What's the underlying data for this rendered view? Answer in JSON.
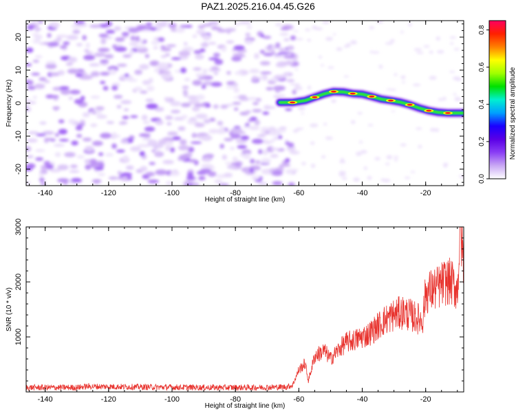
{
  "figure": {
    "title": "PAZ1.2025.216.04.45.G26"
  },
  "colors": {
    "snr_line": "#e8332e",
    "colormap": [
      "#ffffff",
      "#c9a8f4",
      "#8a3ef5",
      "#5a00e6",
      "#1a00ff",
      "#00a0ff",
      "#00f0d0",
      "#00e000",
      "#a0ff00",
      "#ffff00",
      "#ff8000",
      "#ff2000",
      "#ff0060"
    ]
  },
  "chart_data": [
    {
      "type": "heatmap",
      "title": "",
      "xlabel": "Height of straight line (km)",
      "ylabel": "Frequency (Hz)",
      "xlim": [
        -146,
        -8
      ],
      "ylim": [
        -25,
        25
      ],
      "x_ticks": [
        -140,
        -120,
        -100,
        -80,
        -60,
        -40,
        -20
      ],
      "y_ticks": [
        -20,
        -10,
        0,
        10,
        20
      ],
      "noise_region": {
        "x_range": [
          -146,
          -65
        ],
        "amplitude_range": [
          0.02,
          0.12
        ]
      },
      "ridge": {
        "x": [
          -66,
          -62,
          -58,
          -55,
          -52,
          -49,
          -46,
          -43,
          -40,
          -37,
          -34,
          -31,
          -28,
          -25,
          -22,
          -19,
          -16,
          -13,
          -10,
          -8
        ],
        "y": [
          0.2,
          0.2,
          0.8,
          1.8,
          2.8,
          3.5,
          3.4,
          2.9,
          2.7,
          2.0,
          1.2,
          0.8,
          0.3,
          -0.5,
          -1.5,
          -2.3,
          -2.8,
          -3.0,
          -3.0,
          -3.0
        ],
        "peak_amplitude": 0.8
      },
      "colorbar": {
        "label": "Normalized spectral amplitude",
        "range": [
          0.0,
          0.85
        ],
        "ticks": [
          "0.0",
          "0.2",
          "0.4",
          "0.6",
          "0.8"
        ]
      }
    },
    {
      "type": "line",
      "title": "",
      "xlabel": "Height of straight line (km)",
      "ylabel": "SNR (10 * v/v)",
      "xlim": [
        -146,
        -8
      ],
      "ylim": [
        0,
        3000
      ],
      "x_ticks": [
        -140,
        -120,
        -100,
        -80,
        -60,
        -40,
        -20
      ],
      "y_ticks": [
        1000,
        2000,
        3000
      ],
      "series": [
        {
          "x": [
            -146,
            -130,
            -127,
            -110,
            -90,
            -75,
            -64,
            -62,
            -60,
            -58,
            -57,
            -55,
            -52,
            -50,
            -47,
            -45,
            -42,
            -40,
            -38,
            -35,
            -33,
            -30,
            -27,
            -25,
            -23,
            -21,
            -20,
            -18,
            -16,
            -14,
            -12,
            -10,
            -9,
            -8
          ],
          "y": [
            80,
            80,
            100,
            90,
            80,
            80,
            90,
            120,
            400,
            520,
            200,
            650,
            750,
            600,
            800,
            900,
            950,
            1000,
            1050,
            1200,
            1300,
            1400,
            1450,
            1400,
            1350,
            1300,
            1800,
            1850,
            1900,
            2000,
            2000,
            1850,
            3000,
            2300
          ]
        }
      ]
    }
  ]
}
